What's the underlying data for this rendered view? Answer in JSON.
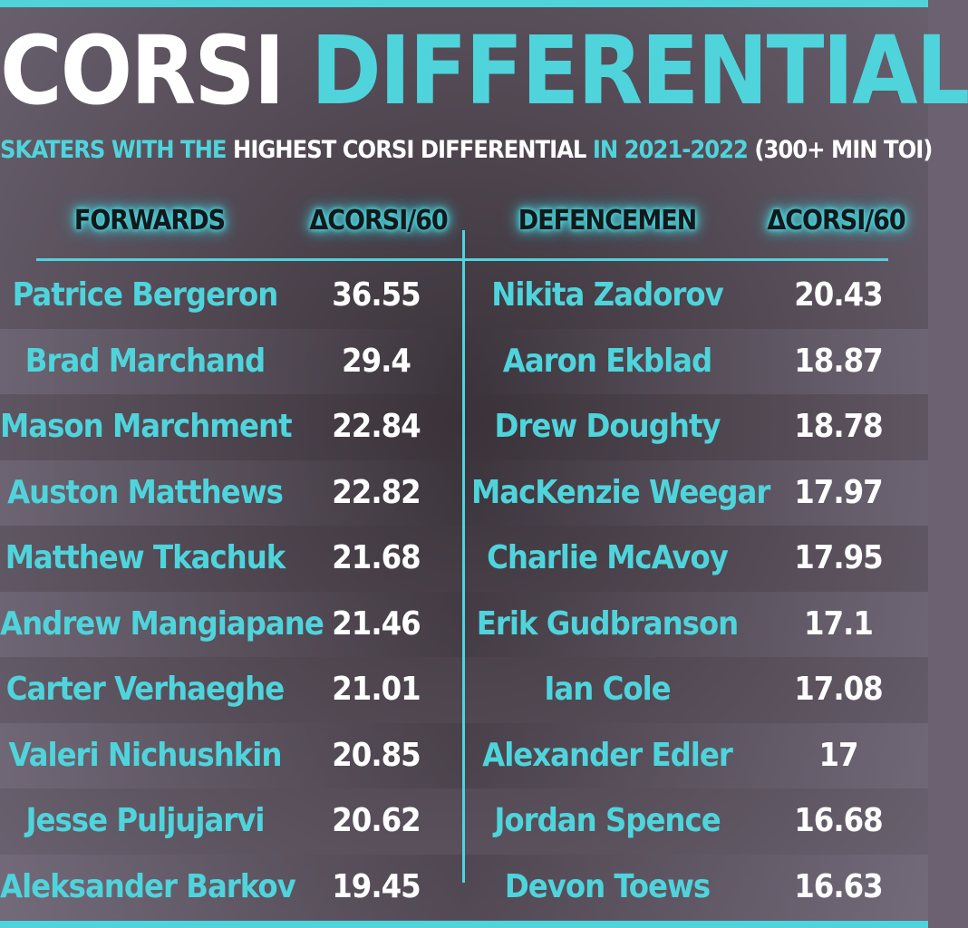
{
  "title": {
    "part1": "CORSI",
    "part2": "DIFFERENTIAL"
  },
  "subtitle": {
    "part1": "SKATERS WITH THE",
    "part2": "HIGHEST CORSI DIFFERENTIAL",
    "part3": "IN 2021-2022",
    "part4": "(300+ MIN TOI)"
  },
  "headers": {
    "forwards": "FORWARDS",
    "forwards_metric": "ΔCORSI/60",
    "defencemen": "DEFENCEMEN",
    "defencemen_metric": "ΔCORSI/60"
  },
  "colors": {
    "accent": "#4fd4dc",
    "value": "#ffffff",
    "background": "#6b6170"
  },
  "chart_data": {
    "type": "table",
    "title": "CORSI DIFFERENTIAL",
    "columns": [
      "FORWARDS",
      "ΔCORSI/60",
      "DEFENCEMEN",
      "ΔCORSI/60"
    ],
    "forwards": [
      {
        "name": "Patrice Bergeron",
        "value": "36.55"
      },
      {
        "name": "Brad Marchand",
        "value": "29.4"
      },
      {
        "name": "Mason Marchment",
        "value": "22.84"
      },
      {
        "name": "Auston Matthews",
        "value": "22.82"
      },
      {
        "name": "Matthew Tkachuk",
        "value": "21.68"
      },
      {
        "name": "Andrew Mangiapane",
        "value": "21.46"
      },
      {
        "name": "Carter Verhaeghe",
        "value": "21.01"
      },
      {
        "name": "Valeri Nichushkin",
        "value": "20.85"
      },
      {
        "name": "Jesse Puljujarvi",
        "value": "20.62"
      },
      {
        "name": "Aleksander Barkov",
        "value": "19.45"
      }
    ],
    "defencemen": [
      {
        "name": "Nikita Zadorov",
        "value": "20.43"
      },
      {
        "name": "Aaron Ekblad",
        "value": "18.87"
      },
      {
        "name": "Drew Doughty",
        "value": "18.78"
      },
      {
        "name": "MacKenzie Weegar",
        "value": "17.97"
      },
      {
        "name": "Charlie McAvoy",
        "value": "17.95"
      },
      {
        "name": "Erik Gudbranson",
        "value": "17.1"
      },
      {
        "name": "Ian Cole",
        "value": "17.08"
      },
      {
        "name": "Alexander Edler",
        "value": "17"
      },
      {
        "name": "Jordan Spence",
        "value": "16.68"
      },
      {
        "name": "Devon Toews",
        "value": "16.63"
      }
    ]
  }
}
